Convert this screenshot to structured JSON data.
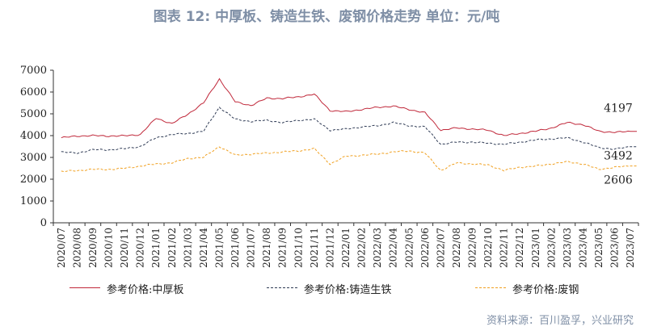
{
  "title": "图表 12: 中厚板、铸造生铁、废钢价格走势  单位：元/吨",
  "source": "资料来源：百川盈孚，兴业研究",
  "chart_data": {
    "type": "line",
    "ylim": [
      0,
      7000
    ],
    "yticks": [
      "0",
      "1000",
      "2000",
      "3000",
      "4000",
      "5000",
      "6000",
      "7000"
    ],
    "x": [
      "2020/07",
      "2020/08",
      "2020/09",
      "2020/10",
      "2020/11",
      "2020/12",
      "2021/01",
      "2021/02",
      "2021/03",
      "2021/04",
      "2021/05",
      "2021/06",
      "2021/07",
      "2021/08",
      "2021/09",
      "2021/10",
      "2021/11",
      "2021/12",
      "2022/01",
      "2022/02",
      "2022/03",
      "2022/04",
      "2022/05",
      "2022/06",
      "2022/07",
      "2022/08",
      "2022/09",
      "2022/10",
      "2022/11",
      "2022/12",
      "2023/01",
      "2023/02",
      "2023/03",
      "2023/04",
      "2023/05",
      "2023/06",
      "2023/07"
    ],
    "xlim": [
      "2020/07",
      "2023/08"
    ],
    "grid": false,
    "legend_position": "bottom",
    "series": [
      {
        "name": "参考价格:中厚板",
        "color": "#c0283a",
        "style": "solid",
        "end_label": "4197",
        "values": [
          3900,
          3980,
          4000,
          3980,
          3990,
          4050,
          4800,
          4550,
          4980,
          5500,
          6600,
          5550,
          5380,
          5720,
          5700,
          5780,
          5900,
          5150,
          5100,
          5200,
          5300,
          5350,
          5200,
          5050,
          4250,
          4350,
          4300,
          4250,
          4000,
          4100,
          4200,
          4350,
          4600,
          4500,
          4200,
          4150,
          4197
        ]
      },
      {
        "name": "参考价格:铸造生铁",
        "color": "#2f3b55",
        "style": "dashed",
        "end_label": "3492",
        "values": [
          3250,
          3200,
          3350,
          3350,
          3400,
          3500,
          3900,
          4050,
          4100,
          4200,
          5300,
          4750,
          4650,
          4700,
          4600,
          4700,
          4750,
          4250,
          4300,
          4400,
          4450,
          4600,
          4450,
          4400,
          3600,
          3700,
          3700,
          3650,
          3600,
          3700,
          3800,
          3850,
          3900,
          3700,
          3450,
          3380,
          3492
        ]
      },
      {
        "name": "参考价格:废钢",
        "color": "#f0a020",
        "style": "dashed",
        "end_label": "2606",
        "values": [
          2350,
          2400,
          2450,
          2450,
          2500,
          2600,
          2700,
          2750,
          2950,
          3000,
          3500,
          3100,
          3150,
          3200,
          3250,
          3300,
          3400,
          2700,
          3050,
          3100,
          3150,
          3250,
          3300,
          3200,
          2400,
          2750,
          2700,
          2650,
          2400,
          2550,
          2600,
          2700,
          2800,
          2700,
          2450,
          2550,
          2606
        ]
      }
    ]
  }
}
